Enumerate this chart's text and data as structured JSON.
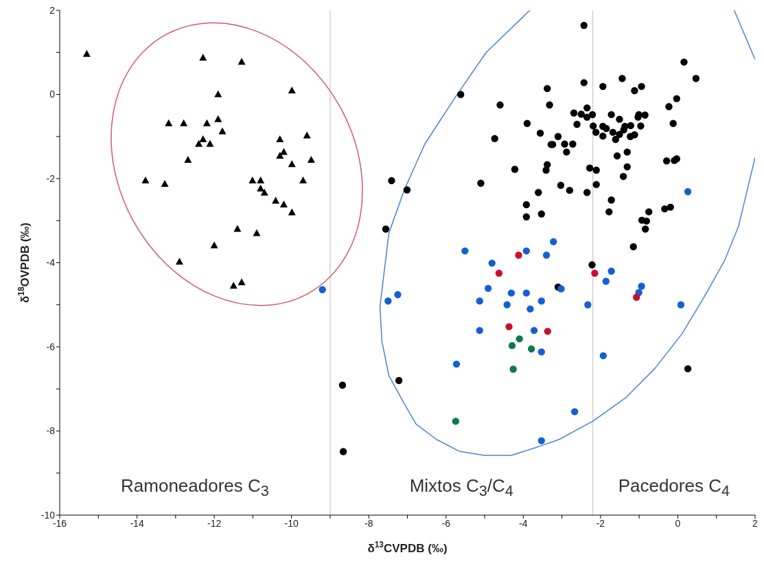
{
  "chart_data": {
    "type": "scatter",
    "xlabel": "δ$^{13}$CVPDB (‰)",
    "ylabel": "δ$^{18}$OVPDB (‰)",
    "xlim": [
      -16,
      2
    ],
    "xticks": [
      -16,
      {
        "value": -15,
        "label": null
      },
      -14,
      {
        "value": -13,
        "label": null
      },
      -12,
      {
        "value": -11,
        "label": null
      },
      -10,
      {
        "value": -9,
        "label": null
      },
      -8,
      {
        "value": -7,
        "label": null
      },
      -6,
      {
        "value": -5,
        "label": null
      },
      -4,
      {
        "value": -3,
        "label": null
      },
      -2,
      {
        "value": -1,
        "label": null
      },
      0,
      {
        "value": 1,
        "label": null
      },
      2
    ],
    "ylim": [
      -10,
      2
    ],
    "yticks": [
      -10,
      {
        "value": -9,
        "label": null
      },
      -8,
      {
        "value": -7,
        "label": null
      },
      -6,
      {
        "value": -5,
        "label": null
      },
      -4,
      {
        "value": -3,
        "label": null
      },
      -2,
      {
        "value": -1,
        "label": null
      },
      0,
      {
        "value": 1,
        "label": null
      },
      2
    ],
    "grid": false,
    "ref_lines": [
      {
        "axis": "x",
        "value": -9,
        "color": "#c8c8c8"
      },
      {
        "axis": "x",
        "value": -2.2,
        "color": "#c8c8c8"
      }
    ],
    "annotations": [
      "Ramoneadores C$_{3}$",
      "Mixtos C$_{3}$/C$_{4}$",
      "Pacedores C$_{4}$"
    ],
    "series": [
      {
        "type": "scatter",
        "marker": "triangle",
        "color": "#000000",
        "x": [
          -15.3,
          -12.29,
          -11.29,
          -9.99,
          -11.9,
          -13.18,
          -12.79,
          -12.19,
          -11.9,
          -11.79,
          -12.29,
          -12.4,
          -12.11,
          -10.3,
          -9.6,
          -10.2,
          -10.3,
          -9.99,
          -9.49,
          -12.68,
          -13.78,
          -13.28,
          -11.01,
          -10.8,
          -10.8,
          -10.7,
          -9.7,
          -10.41,
          -10.2,
          -9.99,
          -11.4,
          -10.9,
          -12.0,
          -12.9,
          -11.29,
          -11.5
        ],
        "values": [
          0.96,
          0.87,
          0.77,
          0.09,
          0.0,
          -0.69,
          -0.69,
          -0.69,
          -0.59,
          -0.88,
          -1.07,
          -1.18,
          -1.18,
          -1.07,
          -0.98,
          -1.37,
          -1.46,
          -1.66,
          -1.56,
          -1.56,
          -2.05,
          -2.13,
          -2.05,
          -2.05,
          -2.24,
          -2.34,
          -2.05,
          -2.53,
          -2.62,
          -2.81,
          -3.2,
          -3.3,
          -3.59,
          -3.98,
          -4.47,
          -4.55
        ]
      },
      {
        "type": "scatter",
        "marker": "circle",
        "color": "#000000",
        "x": [
          -5.62,
          -4.6,
          -3.38,
          -3.32,
          -3.9,
          -3.56,
          -4.74,
          -3.28,
          -4.22,
          -3.38,
          -3.41,
          -5.1,
          -7.41,
          -7.01,
          -3.61,
          -3.92,
          -3.92,
          -3.53,
          -7.56,
          -2.43,
          0.16,
          0.47,
          -2.43,
          -1.94,
          -1.44,
          -1.12,
          -0.94,
          -0.03,
          -0.23,
          -0.12,
          -2.35,
          -2.69,
          -2.5,
          -2.35,
          -2.21,
          -2.61,
          -2.19,
          -2.12,
          -1.94,
          -1.85,
          -1.94,
          -1.72,
          -1.51,
          -1.68,
          -1.61,
          -1.51,
          -1.37,
          -1.22,
          -1.4,
          -1.23,
          -1.12,
          -1.01,
          -0.85,
          -1.03,
          -0.96,
          -3.1,
          -3.24,
          -2.93,
          -2.72,
          -2.88,
          -1.57,
          -1.31,
          -1.31,
          -1.41,
          -2.28,
          -2.11,
          -2.11,
          -3.03,
          -2.8,
          -2.35,
          -1.72,
          -1.78,
          -0.29,
          -0.09,
          -0.03,
          -0.75,
          -0.93,
          -0.81,
          -0.84,
          -0.34,
          -0.19,
          -1.15,
          -2.22,
          -3.1,
          0.26,
          -8.68,
          -7.22,
          -8.66
        ],
        "values": [
          0.0,
          -0.25,
          0.14,
          -0.25,
          -0.69,
          -0.92,
          -1.05,
          -1.19,
          -1.78,
          -1.67,
          -1.8,
          -2.11,
          -2.05,
          -2.27,
          -2.33,
          -2.62,
          -2.91,
          -2.84,
          -3.2,
          1.64,
          0.77,
          0.38,
          0.28,
          0.19,
          0.38,
          0.09,
          0.19,
          -0.1,
          -0.29,
          -0.69,
          -0.32,
          -0.44,
          -0.47,
          -0.54,
          -0.48,
          -0.71,
          -0.75,
          -0.9,
          -0.76,
          -0.81,
          -0.99,
          -0.48,
          -0.59,
          -0.9,
          -1.07,
          -0.95,
          -0.76,
          -0.74,
          -0.84,
          -1.0,
          -0.96,
          -0.48,
          -0.49,
          -0.54,
          -0.75,
          -1.0,
          -1.19,
          -1.18,
          -1.18,
          -1.37,
          -1.46,
          -1.37,
          -1.72,
          -1.95,
          -1.75,
          -1.8,
          -2.14,
          -2.16,
          -2.28,
          -2.33,
          -2.51,
          -2.79,
          -1.58,
          -1.57,
          -1.53,
          -2.79,
          -2.99,
          -3.01,
          -3.2,
          -2.72,
          -2.68,
          -3.62,
          -4.05,
          -4.58,
          -6.52,
          -6.91,
          -6.8,
          -8.49
        ]
      },
      {
        "type": "scatter",
        "marker": "circle",
        "color": "#1560d0",
        "x": [
          -9.2,
          -7.5,
          -7.25,
          -5.51,
          -4.81,
          -3.92,
          -3.4,
          -3.22,
          -4.91,
          -5.13,
          -4.31,
          -3.92,
          -4.42,
          -3.82,
          -3.53,
          -5.13,
          -3.72,
          -3.53,
          -5.73,
          -3.53,
          -3.02,
          -1.72,
          -1.86,
          -2.33,
          -0.94,
          -1.01,
          0.08,
          -1.93,
          -2.67,
          0.26
        ],
        "values": [
          -4.64,
          -4.91,
          -4.76,
          -3.72,
          -4.01,
          -3.72,
          -3.82,
          -3.5,
          -4.61,
          -4.91,
          -4.72,
          -4.72,
          -5.0,
          -5.1,
          -4.91,
          -5.61,
          -5.61,
          -6.12,
          -6.41,
          -8.23,
          -4.62,
          -4.2,
          -4.44,
          -5.0,
          -4.56,
          -4.71,
          -5.0,
          -6.21,
          -7.54,
          -2.31
        ]
      },
      {
        "type": "scatter",
        "marker": "circle",
        "color": "#c8102e",
        "x": [
          -4.12,
          -4.63,
          -4.37,
          -3.37,
          -2.15,
          -1.07
        ],
        "values": [
          -3.82,
          -4.25,
          -5.52,
          -5.63,
          -4.25,
          -4.82
        ]
      },
      {
        "type": "scatter",
        "marker": "circle",
        "color": "#0a7a50",
        "x": [
          -4.1,
          -4.29,
          -3.79,
          -4.26,
          -5.75
        ],
        "values": [
          -5.81,
          -5.97,
          -6.05,
          -6.53,
          -7.77
        ]
      },
      {
        "type": "line",
        "marker": "none",
        "color": "#4a82d4",
        "x": [
          -3.83,
          -4.96,
          -5.77,
          -6.55,
          -7.08,
          -7.48,
          -7.71,
          -7.66,
          -7.48,
          -7.13,
          -6.78,
          -6.25,
          -5.66,
          -5.01,
          -4.31,
          -3.6,
          -3.07,
          -2.19,
          -1.36,
          -0.6,
          0.1,
          0.68,
          1.21,
          1.57,
          2.0
        ],
        "values": [
          2.0,
          1.0,
          -0.08,
          -1.18,
          -2.27,
          -3.3,
          -5.05,
          -5.87,
          -6.68,
          -7.27,
          -7.83,
          -8.2,
          -8.48,
          -8.58,
          -8.58,
          -8.37,
          -8.2,
          -7.76,
          -7.22,
          -6.52,
          -5.7,
          -4.82,
          -3.95,
          -3.14,
          -1.5
        ]
      },
      {
        "type": "line",
        "marker": "none",
        "color": "#4a82d4",
        "x": [
          2.0,
          1.46
        ],
        "values": [
          0.83,
          2.0
        ]
      }
    ]
  }
}
